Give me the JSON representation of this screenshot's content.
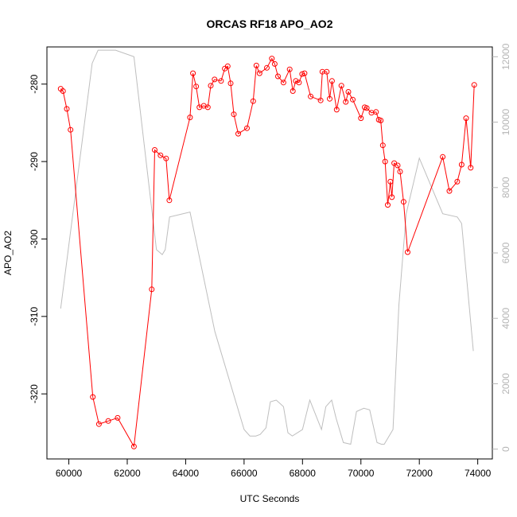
{
  "chart_data": {
    "type": "line",
    "title": "ORCAS RF18 APO_AO2",
    "xlabel": "UTC Seconds",
    "ylabel": "APO_AO2",
    "xlim": [
      59250,
      74500
    ],
    "ylim": [
      -328.4,
      -275.2
    ],
    "y2lim": [
      -300,
      12300
    ],
    "x_ticks": [
      60000,
      62000,
      64000,
      66000,
      68000,
      70000,
      72000,
      74000
    ],
    "y_ticks": [
      -280,
      -290,
      -300,
      -310,
      -320
    ],
    "y2_ticks": [
      0,
      2000,
      4000,
      6000,
      8000,
      10000,
      12000
    ],
    "grid": false,
    "series": [
      {
        "axis": "left",
        "color": "#ff0000",
        "marker": "circle",
        "x": [
          59720,
          59800,
          59930,
          60060,
          60820,
          61030,
          61350,
          61670,
          62230,
          62840,
          62940,
          63140,
          63330,
          63440,
          64150,
          64250,
          64360,
          64470,
          64620,
          64760,
          64860,
          64990,
          65210,
          65340,
          65440,
          65540,
          65650,
          65800,
          66100,
          66310,
          66420,
          66530,
          66780,
          66950,
          67050,
          67160,
          67350,
          67560,
          67670,
          67770,
          67880,
          67990,
          68070,
          68280,
          68620,
          68680,
          68830,
          68930,
          69010,
          69170,
          69330,
          69480,
          69570,
          69720,
          70000,
          70130,
          70200,
          70360,
          70520,
          70610,
          70680,
          70750,
          70830,
          70920,
          71010,
          71060,
          71140,
          71260,
          71340,
          71460,
          71600,
          72800,
          73030,
          73300,
          73450,
          73600,
          73760,
          73880
        ],
        "values": [
          -280.6,
          -280.9,
          -283.2,
          -285.9,
          -320.4,
          -323.9,
          -323.5,
          -323.1,
          -326.8,
          -306.5,
          -288.5,
          -289.2,
          -289.6,
          -295.0,
          -284.3,
          -278.6,
          -280.3,
          -283.0,
          -282.8,
          -283.0,
          -280.2,
          -279.4,
          -279.6,
          -278.0,
          -277.7,
          -279.9,
          -283.9,
          -286.4,
          -285.7,
          -282.2,
          -277.6,
          -278.6,
          -277.9,
          -276.7,
          -277.4,
          -279.0,
          -279.8,
          -278.1,
          -280.9,
          -279.6,
          -279.8,
          -278.7,
          -278.6,
          -281.6,
          -282.1,
          -278.4,
          -278.4,
          -281.9,
          -279.6,
          -283.3,
          -280.2,
          -282.3,
          -281.0,
          -282.0,
          -284.4,
          -283.0,
          -283.1,
          -283.7,
          -283.6,
          -284.6,
          -284.7,
          -287.9,
          -290.0,
          -295.6,
          -292.6,
          -294.6,
          -290.2,
          -290.5,
          -291.3,
          -295.2,
          -301.7,
          -289.4,
          -293.8,
          -292.6,
          -290.4,
          -284.4,
          -290.8,
          -280.1
        ]
      },
      {
        "axis": "right",
        "color": "#bebebe",
        "marker": "none",
        "x": [
          59720,
          60800,
          61000,
          61600,
          62230,
          63000,
          63200,
          63300,
          63450,
          64150,
          65000,
          66000,
          66200,
          66400,
          66550,
          66750,
          66900,
          67100,
          67350,
          67500,
          67650,
          68000,
          68250,
          68650,
          68800,
          68900,
          69000,
          69150,
          69400,
          69650,
          69850,
          70100,
          70300,
          70550,
          70700,
          70800,
          71100,
          71300,
          71550,
          72000,
          72800,
          73300,
          73450,
          73850
        ],
        "values": [
          4300,
          11800,
          12200,
          12200,
          12000,
          6100,
          5950,
          6100,
          7100,
          7250,
          3600,
          600,
          400,
          400,
          450,
          650,
          1450,
          1500,
          1300,
          500,
          400,
          600,
          1500,
          600,
          1300,
          1400,
          1500,
          950,
          200,
          150,
          1150,
          1250,
          1200,
          200,
          150,
          150,
          600,
          4400,
          7200,
          8900,
          7200,
          7100,
          6900,
          3000
        ]
      }
    ]
  }
}
